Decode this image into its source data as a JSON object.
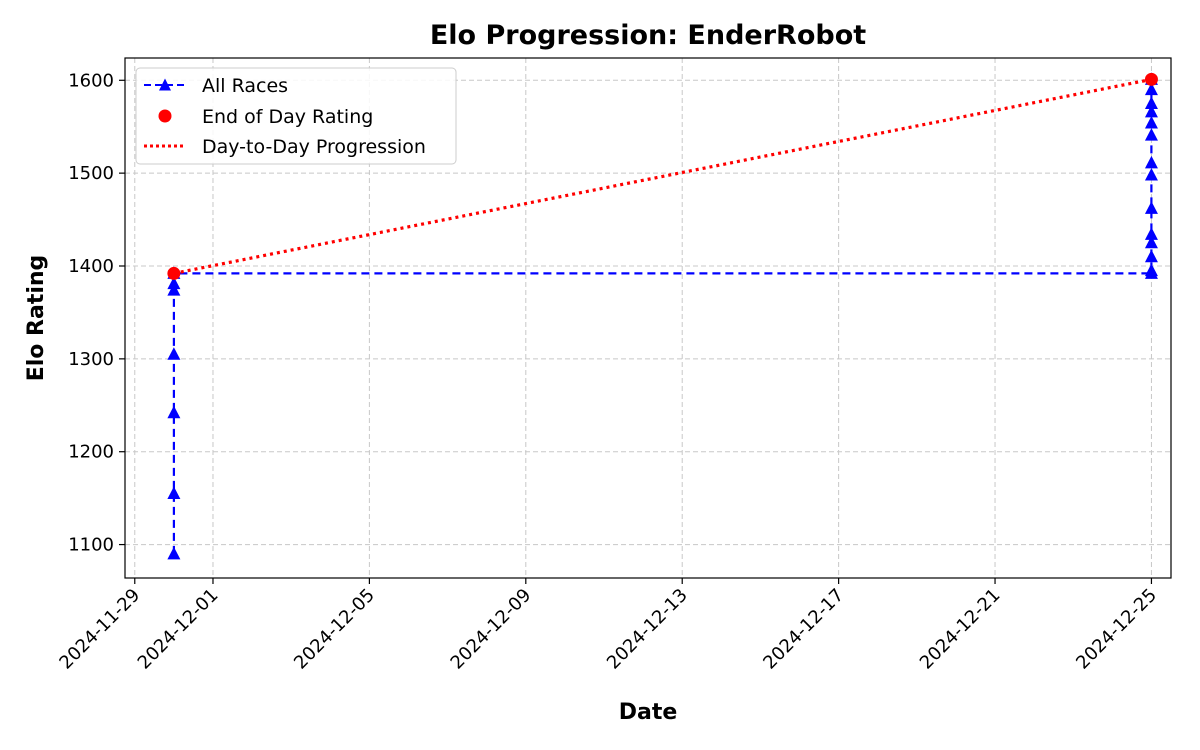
{
  "chart_data": {
    "type": "line",
    "title": "Elo Progression: EnderRobot",
    "xlabel": "Date",
    "ylabel": "Elo Rating",
    "x_axis_type": "date",
    "xlim": [
      "2024-11-28T18:00",
      "2024-12-25T12:00"
    ],
    "ylim": [
      1064,
      1624
    ],
    "grid": true,
    "legend_position": "top-left",
    "x_ticks": [
      "2024-11-29",
      "2024-12-01",
      "2024-12-05",
      "2024-12-09",
      "2024-12-13",
      "2024-12-17",
      "2024-12-21",
      "2024-12-25"
    ],
    "y_ticks": [
      1100,
      1200,
      1300,
      1400,
      1500,
      1600
    ],
    "series": [
      {
        "name": "All Races",
        "style": "dashed-triangle",
        "color": "#0000ff",
        "points": [
          {
            "x": "2024-11-30",
            "y": 1090
          },
          {
            "x": "2024-11-30",
            "y": 1155
          },
          {
            "x": "2024-11-30",
            "y": 1242
          },
          {
            "x": "2024-11-30",
            "y": 1305
          },
          {
            "x": "2024-11-30",
            "y": 1374
          },
          {
            "x": "2024-11-30",
            "y": 1381
          },
          {
            "x": "2024-11-30",
            "y": 1392
          },
          {
            "x": "2024-12-25",
            "y": 1392
          },
          {
            "x": "2024-12-25",
            "y": 1395
          },
          {
            "x": "2024-12-25",
            "y": 1410
          },
          {
            "x": "2024-12-25",
            "y": 1425
          },
          {
            "x": "2024-12-25",
            "y": 1434
          },
          {
            "x": "2024-12-25",
            "y": 1462
          },
          {
            "x": "2024-12-25",
            "y": 1498
          },
          {
            "x": "2024-12-25",
            "y": 1511
          },
          {
            "x": "2024-12-25",
            "y": 1541
          },
          {
            "x": "2024-12-25",
            "y": 1554
          },
          {
            "x": "2024-12-25",
            "y": 1566
          },
          {
            "x": "2024-12-25",
            "y": 1575
          },
          {
            "x": "2024-12-25",
            "y": 1590
          },
          {
            "x": "2024-12-25",
            "y": 1601
          }
        ]
      },
      {
        "name": "End of Day Rating",
        "style": "scatter-circle",
        "color": "#ff0000",
        "points": [
          {
            "x": "2024-11-30",
            "y": 1392
          },
          {
            "x": "2024-12-25",
            "y": 1601
          }
        ]
      },
      {
        "name": "Day-to-Day Progression",
        "style": "dotted",
        "color": "#ff0000",
        "points": [
          {
            "x": "2024-11-30",
            "y": 1392
          },
          {
            "x": "2024-12-25",
            "y": 1601
          }
        ]
      }
    ]
  }
}
